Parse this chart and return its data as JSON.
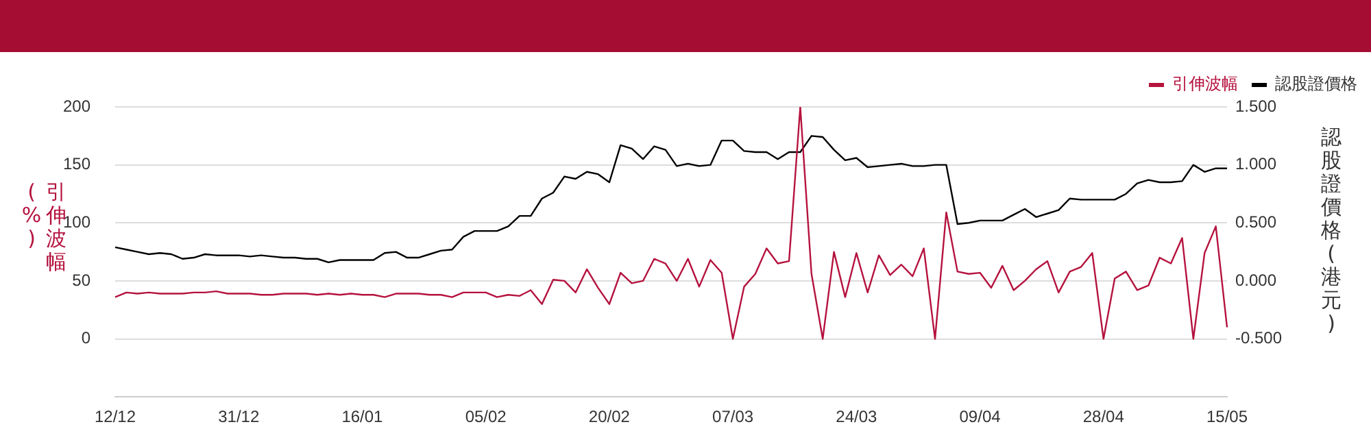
{
  "chart_data": {
    "type": "line",
    "categories": [
      "12/12",
      null,
      null,
      null,
      null,
      null,
      null,
      null,
      null,
      null,
      null,
      "31/12",
      null,
      null,
      null,
      null,
      null,
      null,
      null,
      null,
      null,
      null,
      "16/01",
      null,
      null,
      null,
      null,
      null,
      null,
      null,
      null,
      null,
      null,
      "05/02",
      null,
      null,
      null,
      null,
      null,
      null,
      null,
      null,
      null,
      null,
      "20/02",
      null,
      null,
      null,
      null,
      null,
      null,
      null,
      null,
      null,
      null,
      "07/03",
      null,
      null,
      null,
      null,
      null,
      null,
      null,
      null,
      null,
      null,
      "24/03",
      null,
      null,
      null,
      null,
      null,
      null,
      null,
      null,
      null,
      null,
      "09/04",
      null,
      null,
      null,
      null,
      null,
      null,
      null,
      null,
      null,
      null,
      "28/04",
      null,
      null,
      null,
      null,
      null,
      null,
      null,
      null,
      null,
      null,
      "15/05"
    ],
    "series": [
      {
        "name": "引伸波幅",
        "color": "#b5123e",
        "values": [
          36,
          40,
          39,
          40,
          39,
          39,
          39,
          40,
          40,
          41,
          39,
          39,
          39,
          38,
          38,
          39,
          39,
          39,
          38,
          39,
          38,
          39,
          38,
          38,
          36,
          39,
          39,
          39,
          38,
          38,
          36,
          40,
          40,
          40,
          36,
          38,
          37,
          42,
          30,
          51,
          50,
          40,
          60,
          44,
          30,
          57,
          48,
          50,
          69,
          65,
          50,
          69,
          45,
          68,
          57,
          0,
          45,
          56,
          78,
          65,
          67,
          200,
          56,
          0,
          75,
          36,
          74,
          40,
          72,
          55,
          64,
          54,
          78,
          0,
          109,
          58,
          56,
          57,
          44,
          63,
          42,
          50,
          60,
          67,
          40,
          58,
          62,
          74,
          0,
          52,
          58,
          42,
          46,
          70,
          65,
          87,
          0,
          74,
          97,
          10
        ]
      },
      {
        "name": "認股證價格",
        "color": "#000000",
        "axis": "y2",
        "values": [
          0.29,
          0.27,
          0.25,
          0.23,
          0.24,
          0.23,
          0.19,
          0.2,
          0.23,
          0.22,
          0.22,
          0.22,
          0.21,
          0.22,
          0.21,
          0.2,
          0.2,
          0.19,
          0.19,
          0.16,
          0.18,
          0.18,
          0.18,
          0.18,
          0.24,
          0.25,
          0.2,
          0.2,
          0.23,
          0.26,
          0.27,
          0.38,
          0.43,
          0.43,
          0.43,
          0.47,
          0.56,
          0.56,
          0.71,
          0.76,
          0.9,
          0.88,
          0.94,
          0.92,
          0.85,
          1.17,
          1.14,
          1.05,
          1.16,
          1.13,
          0.99,
          1.01,
          0.99,
          1.0,
          1.21,
          1.21,
          1.12,
          1.11,
          1.11,
          1.05,
          1.11,
          1.11,
          1.25,
          1.24,
          1.13,
          1.04,
          1.06,
          0.98,
          0.99,
          1.0,
          1.01,
          0.99,
          0.99,
          1.0,
          1.0,
          0.49,
          0.5,
          0.52,
          0.52,
          0.52,
          0.57,
          0.62,
          0.55,
          0.58,
          0.61,
          0.71,
          0.7,
          0.7,
          0.7,
          0.7,
          0.75,
          0.84,
          0.87,
          0.85,
          0.85,
          0.86,
          1.0,
          0.94,
          0.97,
          0.97
        ]
      }
    ],
    "ylabel": "引伸波幅(%)",
    "y2label": "認股證價格(港元)",
    "ylim": [
      -50,
      200
    ],
    "yticks": [
      0,
      50,
      100,
      150,
      200
    ],
    "y2lim": [
      -1,
      1.5
    ],
    "y2ticks": [
      {
        "value": -0.5,
        "label": "-0.500"
      },
      {
        "value": 0,
        "label": "0.000"
      },
      {
        "value": 0.5,
        "label": "0.500"
      },
      {
        "value": 1,
        "label": "1.000"
      },
      {
        "value": 1.5,
        "label": "1.500"
      }
    ],
    "grid": "y",
    "legend": "top right",
    "marker": "none",
    "line_style": "solid"
  }
}
